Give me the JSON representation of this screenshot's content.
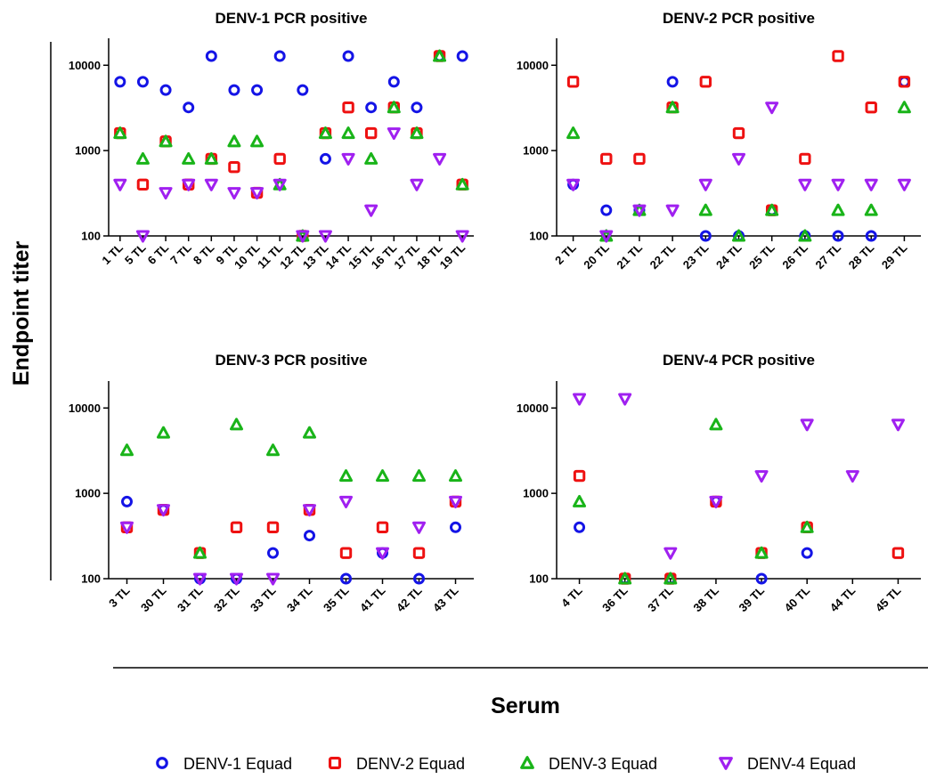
{
  "figure": {
    "ylabel": "Endpoint titer",
    "xlabel": "Serum"
  },
  "legend": [
    {
      "name": "DENV-1 Equad",
      "marker": "circle",
      "color": "#1414e6"
    },
    {
      "name": "DENV-2 Equad",
      "marker": "square",
      "color": "#ee1111"
    },
    {
      "name": "DENV-3 Equad",
      "marker": "triangle-up",
      "color": "#19b419"
    },
    {
      "name": "DENV-4 Equad",
      "marker": "triangle-down",
      "color": "#a020f0"
    }
  ],
  "chart_data": [
    {
      "type": "scatter",
      "title": "DENV-1 PCR positive",
      "yscale": "log",
      "ylim": [
        100,
        12800
      ],
      "yticks": [
        "100",
        "1000",
        "10000"
      ],
      "categories": [
        "1 TL",
        "5 TL",
        "6 TL",
        "7 TL",
        "8 TL",
        "9 TL",
        "10 TL",
        "11 TL",
        "12 TL",
        "13 TL",
        "14 TL",
        "15 TL",
        "16 TL",
        "17 TL",
        "18 TL",
        "19 TL"
      ],
      "series": [
        {
          "name": "DENV-1 Equad",
          "values": [
            6400,
            6400,
            5120,
            3200,
            12800,
            5120,
            5120,
            12800,
            5120,
            800,
            12800,
            3200,
            6400,
            3200,
            12800,
            12800
          ]
        },
        {
          "name": "DENV-2 Equad",
          "values": [
            1600,
            400,
            1280,
            400,
            800,
            640,
            320,
            800,
            100,
            1600,
            3200,
            1600,
            3200,
            1600,
            12800,
            400
          ]
        },
        {
          "name": "DENV-3 Equad",
          "values": [
            1600,
            800,
            1280,
            800,
            800,
            1280,
            1280,
            400,
            100,
            1600,
            1600,
            800,
            3200,
            1600,
            12800,
            400
          ]
        },
        {
          "name": "DENV-4 Equad",
          "values": [
            400,
            100,
            320,
            400,
            400,
            320,
            320,
            400,
            100,
            100,
            800,
            200,
            1600,
            400,
            800,
            100
          ]
        }
      ]
    },
    {
      "type": "scatter",
      "title": "DENV-2 PCR positive",
      "yscale": "log",
      "ylim": [
        100,
        12800
      ],
      "yticks": [
        "100",
        "1000",
        "10000"
      ],
      "categories": [
        "2 TL",
        "20 TL",
        "21 TL",
        "22 TL",
        "23 TL",
        "24 TL",
        "25 TL",
        "26 TL",
        "27 TL",
        "28 TL",
        "29 TL"
      ],
      "series": [
        {
          "name": "DENV-1 Equad",
          "values": [
            400,
            200,
            200,
            6400,
            100,
            100,
            200,
            100,
            100,
            100,
            6400
          ]
        },
        {
          "name": "DENV-2 Equad",
          "values": [
            6400,
            800,
            800,
            3200,
            6400,
            1600,
            200,
            800,
            12800,
            3200,
            6400
          ]
        },
        {
          "name": "DENV-3 Equad",
          "values": [
            1600,
            100,
            200,
            3200,
            200,
            100,
            200,
            100,
            200,
            200,
            3200
          ]
        },
        {
          "name": "DENV-4 Equad",
          "values": [
            400,
            100,
            200,
            200,
            400,
            800,
            3200,
            400,
            400,
            400,
            400
          ]
        }
      ]
    },
    {
      "type": "scatter",
      "title": "DENV-3 PCR positive",
      "yscale": "log",
      "ylim": [
        100,
        12800
      ],
      "yticks": [
        "100",
        "1000",
        "10000"
      ],
      "categories": [
        "3 TL",
        "30 TL",
        "31 TL",
        "32 TL",
        "33 TL",
        "34 TL",
        "35 TL",
        "41 TL",
        "42 TL",
        "43 TL"
      ],
      "series": [
        {
          "name": "DENV-1 Equad",
          "values": [
            800,
            640,
            100,
            100,
            200,
            320,
            100,
            200,
            100,
            400
          ]
        },
        {
          "name": "DENV-2 Equad",
          "values": [
            400,
            640,
            200,
            400,
            400,
            640,
            200,
            400,
            200,
            800
          ]
        },
        {
          "name": "DENV-3 Equad",
          "values": [
            3200,
            5120,
            200,
            6400,
            3200,
            5120,
            1600,
            1600,
            1600,
            1600
          ]
        },
        {
          "name": "DENV-4 Equad",
          "values": [
            400,
            640,
            100,
            100,
            100,
            640,
            800,
            200,
            400,
            800
          ]
        }
      ]
    },
    {
      "type": "scatter",
      "title": "DENV-4 PCR positive",
      "yscale": "log",
      "ylim": [
        100,
        12800
      ],
      "yticks": [
        "100",
        "1000",
        "10000"
      ],
      "categories": [
        "4 TL",
        "36 TL",
        "37 TL",
        "38 TL",
        "39 TL",
        "40 TL",
        "44 TL",
        "45 TL"
      ],
      "series": [
        {
          "name": "DENV-1 Equad",
          "values": [
            400,
            100,
            100,
            800,
            100,
            200,
            null,
            null
          ]
        },
        {
          "name": "DENV-2 Equad",
          "values": [
            1600,
            100,
            100,
            800,
            200,
            400,
            null,
            200
          ]
        },
        {
          "name": "DENV-3 Equad",
          "values": [
            800,
            100,
            100,
            6400,
            200,
            400,
            null,
            null
          ]
        },
        {
          "name": "DENV-4 Equad",
          "values": [
            12800,
            12800,
            200,
            800,
            1600,
            6400,
            1600,
            6400
          ]
        }
      ]
    }
  ]
}
